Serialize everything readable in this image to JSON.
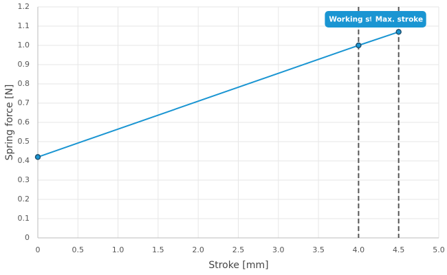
{
  "chart_data": {
    "type": "line",
    "x_label": "Stroke [mm]",
    "y_label": "Spring force [N]",
    "x": [
      0,
      4,
      4.5
    ],
    "series": [
      {
        "name": "Spring force",
        "color": "#1a95d2",
        "values": [
          0.42,
          1.0,
          1.07
        ]
      }
    ],
    "xlim": [
      0,
      5
    ],
    "ylim": [
      0,
      1.2
    ],
    "xticks": [
      0,
      0.5,
      {
        "value": 1,
        "label": "1.0"
      },
      1.5,
      {
        "value": 2,
        "label": "2.0"
      },
      2.5,
      {
        "value": 3,
        "label": "3.0"
      },
      3.5,
      {
        "value": 4,
        "label": "4.0"
      },
      4.5,
      {
        "value": 5,
        "label": "5.0"
      }
    ],
    "yticks": [
      0,
      0.1,
      0.2,
      0.3,
      0.4,
      0.5,
      0.6,
      0.7,
      0.8,
      0.9,
      {
        "value": 1,
        "label": "1.0"
      },
      1.1,
      1.2
    ],
    "grid": true,
    "annotations": [
      {
        "x": 4,
        "label": "Working st"
      },
      {
        "x": 4.5,
        "label": "Max. stroke"
      }
    ]
  }
}
